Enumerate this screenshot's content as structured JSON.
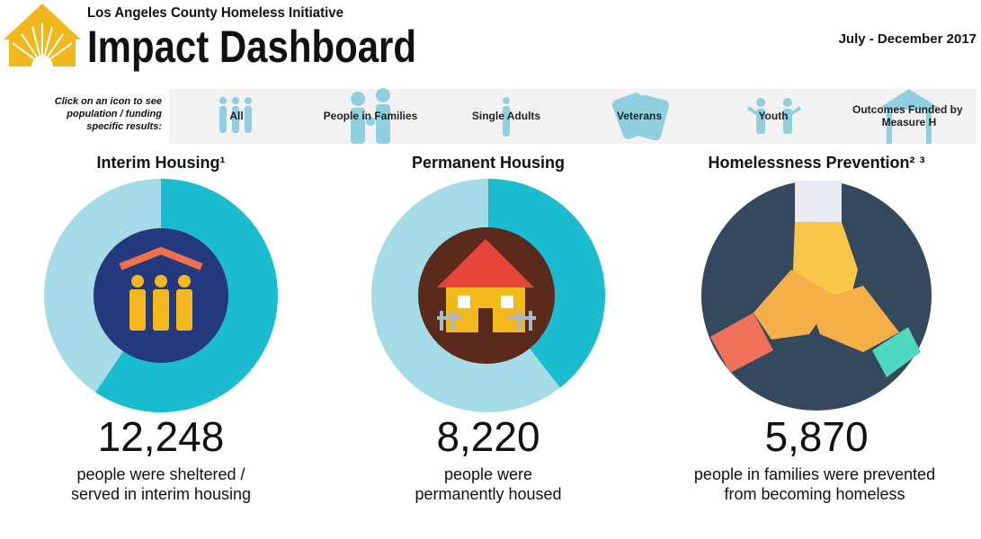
{
  "header": {
    "org": "Los Angeles County Homeless Initiative",
    "title": "Impact Dashboard",
    "period": "July - December 2017"
  },
  "filter": {
    "prompt": [
      "Click on an icon to see",
      "population / funding",
      "specific results:"
    ],
    "tabs": [
      "All",
      "People in Families",
      "Single Adults",
      "Veterans",
      "Youth",
      "Outcomes Funded by Measure H"
    ]
  },
  "cards": [
    {
      "title": "Interim Housing¹",
      "value": "12,248",
      "caption": [
        "people were sheltered /",
        "served in interim housing"
      ]
    },
    {
      "title": "Permanent Housing",
      "value": "8,220",
      "caption": [
        "people were",
        "permanently housed"
      ]
    },
    {
      "title": "Homelessness Prevention² ³",
      "value": "5,870",
      "caption": [
        "people in families were prevented",
        "from becoming homeless"
      ]
    }
  ]
}
